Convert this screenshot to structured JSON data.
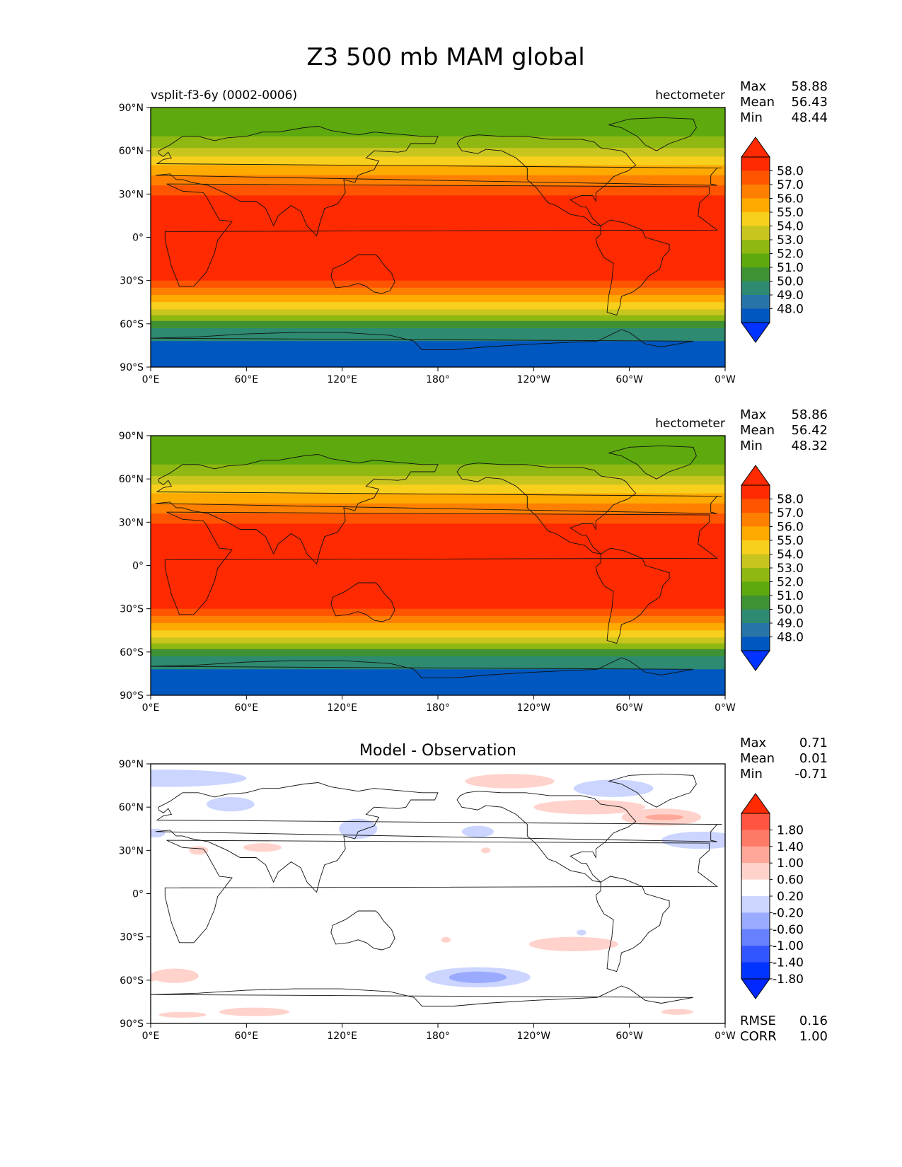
{
  "title": "Z3 500 mb MAM global",
  "x_ticks": [
    "0°E",
    "60°E",
    "120°E",
    "180°",
    "120°W",
    "60°W",
    "0°W"
  ],
  "y_ticks": [
    "90°N",
    "60°N",
    "30°N",
    "0°",
    "30°S",
    "60°S",
    "90°S"
  ],
  "panels": [
    {
      "left_title": "vsplit-f3-6y (0002-0006)",
      "center_title": "",
      "right_title": "hectometer",
      "stats": [
        [
          "Max",
          "58.88"
        ],
        [
          "Mean",
          "56.43"
        ],
        [
          "Min",
          "48.44"
        ]
      ],
      "colorbar_labels": [
        "58.0",
        "57.0",
        "56.0",
        "55.0",
        "54.0",
        "53.0",
        "52.0",
        "51.0",
        "50.0",
        "49.0",
        "48.0"
      ],
      "colorbar_colors": [
        "#ff2a00",
        "#ff5500",
        "#ff8000",
        "#ffaa00",
        "#f7cf1c",
        "#c8c51e",
        "#90b812",
        "#5ea90e",
        "#3f9233",
        "#2e8a70",
        "#2873a8",
        "#0057c0"
      ],
      "extend_colors": [
        "#ff2a00",
        "#0033ff"
      ],
      "footer": []
    },
    {
      "left_title": "",
      "center_title": "",
      "right_title": "hectometer",
      "stats": [
        [
          "Max",
          "58.86"
        ],
        [
          "Mean",
          "56.42"
        ],
        [
          "Min",
          "48.32"
        ]
      ],
      "colorbar_labels": [
        "58.0",
        "57.0",
        "56.0",
        "55.0",
        "54.0",
        "53.0",
        "52.0",
        "51.0",
        "50.0",
        "49.0",
        "48.0"
      ],
      "colorbar_colors": [
        "#ff2a00",
        "#ff5500",
        "#ff8000",
        "#ffaa00",
        "#f7cf1c",
        "#c8c51e",
        "#90b812",
        "#5ea90e",
        "#3f9233",
        "#2e8a70",
        "#2873a8",
        "#0057c0"
      ],
      "extend_colors": [
        "#ff2a00",
        "#0033ff"
      ],
      "footer": []
    },
    {
      "left_title": "",
      "center_title": "Model - Observation",
      "right_title": "",
      "stats": [
        [
          "Max",
          "0.71"
        ],
        [
          "Mean",
          "0.01"
        ],
        [
          "Min",
          "-0.71"
        ]
      ],
      "colorbar_labels": [
        "1.80",
        "1.40",
        "1.00",
        "0.60",
        "0.20",
        "-0.20",
        "-0.60",
        "-1.00",
        "-1.40",
        "-1.80"
      ],
      "colorbar_colors": [
        "#ff5540",
        "#ff7a66",
        "#ffa899",
        "#ffd3cc",
        "#ffffff",
        "#cbd5ff",
        "#99aaff",
        "#6680ff",
        "#3355ff",
        "#0033ff"
      ],
      "extend_colors": [
        "#ff2a00",
        "#0028ff"
      ],
      "footer": [
        [
          "RMSE",
          "0.16"
        ],
        [
          "CORR",
          "1.00"
        ]
      ]
    }
  ]
}
